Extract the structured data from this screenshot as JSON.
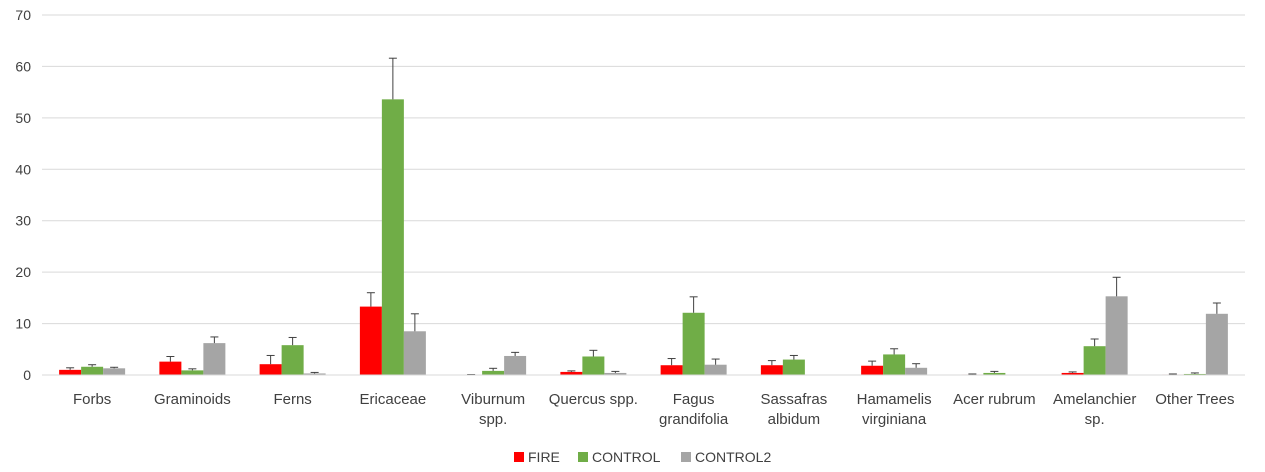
{
  "chart_data": {
    "type": "bar",
    "title": "",
    "xlabel": "",
    "ylabel": "",
    "ylim": [
      0,
      70
    ],
    "yticks": [
      0,
      10,
      20,
      30,
      40,
      50,
      60,
      70
    ],
    "grid": true,
    "legend_position": "bottom",
    "categories": [
      [
        "Forbs"
      ],
      [
        "Graminoids"
      ],
      [
        "Ferns"
      ],
      [
        "Ericaceae"
      ],
      [
        "Viburnum",
        "spp."
      ],
      [
        "Quercus spp."
      ],
      [
        "Fagus",
        "grandifolia"
      ],
      [
        "Sassafras",
        "albidum"
      ],
      [
        "Hamamelis",
        "virginiana"
      ],
      [
        "Acer rubrum"
      ],
      [
        "Amelanchier",
        "sp."
      ],
      [
        "Other Trees"
      ]
    ],
    "series": [
      {
        "name": "FIRE",
        "color": "#ff0000",
        "values": [
          1.0,
          2.6,
          2.1,
          13.3,
          0.0,
          0.6,
          1.9,
          1.9,
          1.8,
          0.1,
          0.4,
          0.1
        ],
        "errors": [
          0.4,
          1.0,
          1.7,
          2.7,
          0.1,
          0.2,
          1.3,
          0.9,
          0.9,
          0.1,
          0.2,
          0.1
        ]
      },
      {
        "name": "CONTROL",
        "color": "#70ad47",
        "values": [
          1.6,
          0.9,
          5.8,
          53.6,
          0.8,
          3.6,
          12.1,
          3.0,
          4.0,
          0.4,
          5.6,
          0.2
        ],
        "errors": [
          0.4,
          0.3,
          1.5,
          8.0,
          0.5,
          1.2,
          3.1,
          0.8,
          1.1,
          0.3,
          1.4,
          0.2
        ]
      },
      {
        "name": "CONTROL2",
        "color": "#a5a5a5",
        "values": [
          1.3,
          6.2,
          0.3,
          8.5,
          3.7,
          0.4,
          2.0,
          0.0,
          1.4,
          0.0,
          15.3,
          11.9
        ],
        "errors": [
          0.2,
          1.2,
          0.2,
          3.4,
          0.7,
          0.3,
          1.1,
          0.0,
          0.8,
          0.0,
          3.7,
          2.1
        ]
      }
    ]
  }
}
